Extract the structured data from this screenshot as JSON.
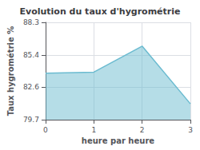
{
  "chart_data": {
    "type": "area",
    "title": "Evolution du taux d'hygrométrie",
    "xlabel": "heure par heure",
    "ylabel": "Taux hygrométrie %",
    "x": [
      0,
      1,
      2,
      3
    ],
    "values": [
      83.8,
      83.9,
      86.2,
      81.1
    ],
    "color": "#6bbbd0",
    "xlim": [
      0,
      3
    ],
    "xticks": [
      0,
      1,
      2,
      3
    ],
    "ylim": [
      79.7,
      88.3
    ],
    "yticks": [
      79.7,
      82.6,
      85.4,
      88.3
    ],
    "grid": true
  }
}
